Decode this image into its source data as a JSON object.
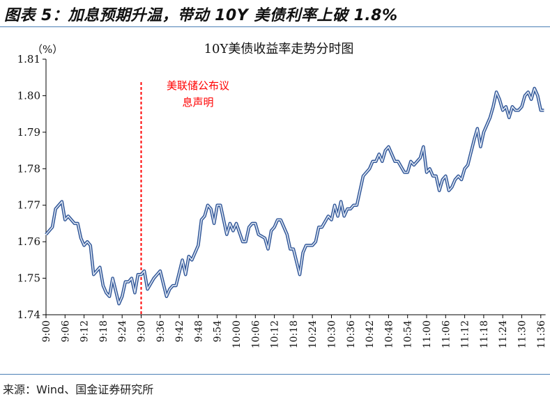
{
  "figure": {
    "title": "图表 5：加息预期升温，带动 10Y 美债利率上破 1.8%",
    "source": "来源：Wind、国金证券研究所"
  },
  "chart_data": {
    "type": "line",
    "title": "10Y美债收益率走势分时图",
    "ylabel": "（%）",
    "xlabel": "",
    "ylim": [
      1.74,
      1.81
    ],
    "yticks": [
      "1.74",
      "1.75",
      "1.76",
      "1.77",
      "1.78",
      "1.79",
      "1.80",
      "1.81"
    ],
    "xticks": [
      "9:00",
      "9:06",
      "9:12",
      "9:18",
      "9:24",
      "9:30",
      "9:36",
      "9:42",
      "9:48",
      "9:54",
      "10:00",
      "10:06",
      "10:12",
      "10:18",
      "10:24",
      "10:30",
      "10:36",
      "10:42",
      "10:48",
      "10:54",
      "11:00",
      "11:06",
      "11:12",
      "11:18",
      "11:24",
      "11:30",
      "11:36"
    ],
    "grid": false,
    "line_color": "#2f5597",
    "annotation": {
      "x": "9:30",
      "lines": [
        "美联储公布议",
        "息声明"
      ],
      "color": "#ff0000"
    },
    "series": [
      {
        "x": [
          "9:00",
          "9:02",
          "9:03",
          "9:05",
          "9:06",
          "9:07",
          "9:09",
          "9:10",
          "9:11",
          "9:12",
          "9:13",
          "9:14",
          "9:15",
          "9:17",
          "9:18",
          "9:19",
          "9:20",
          "9:21",
          "9:23",
          "9:24",
          "9:25",
          "9:26",
          "9:27",
          "9:28",
          "9:29",
          "9:30",
          "9:31",
          "9:32",
          "9:34",
          "9:35",
          "9:36",
          "9:38",
          "9:39",
          "9:40",
          "9:41",
          "9:43",
          "9:44",
          "9:45",
          "9:46",
          "9:48",
          "9:49",
          "9:50",
          "9:51",
          "9:52",
          "9:53",
          "9:54",
          "9:55",
          "9:57",
          "9:58",
          "9:59",
          "10:00",
          "10:02",
          "10:03",
          "10:04",
          "10:05",
          "10:06",
          "10:07",
          "10:09",
          "10:10",
          "10:11",
          "10:12",
          "10:13",
          "10:14",
          "10:16",
          "10:17",
          "10:18",
          "10:20",
          "10:21",
          "10:22",
          "10:24",
          "10:25",
          "10:26",
          "10:27",
          "10:29",
          "10:30",
          "10:31",
          "10:32",
          "10:33",
          "10:34",
          "10:35",
          "10:36",
          "10:37",
          "10:38",
          "10:40",
          "10:42",
          "10:43",
          "10:44",
          "10:45",
          "10:46",
          "10:47",
          "10:48",
          "10:50",
          "10:51",
          "10:53",
          "10:54",
          "10:55",
          "10:56",
          "10:58",
          "10:59",
          "11:00",
          "11:01",
          "11:02",
          "11:03",
          "11:04",
          "11:05",
          "11:06",
          "11:07",
          "11:08",
          "11:09",
          "11:10",
          "11:11",
          "11:12",
          "11:13",
          "11:15",
          "11:16",
          "11:17",
          "11:18",
          "11:20",
          "11:21",
          "11:22",
          "11:23",
          "11:24",
          "11:25",
          "11:26",
          "11:27",
          "11:28",
          "11:29",
          "11:30",
          "11:31",
          "11:32",
          "11:33",
          "11:34",
          "11:35",
          "11:36",
          "11:37"
        ],
        "y": [
          1.762,
          1.764,
          1.769,
          1.771,
          1.766,
          1.767,
          1.765,
          1.765,
          1.761,
          1.759,
          1.76,
          1.759,
          1.751,
          1.753,
          1.748,
          1.746,
          1.745,
          1.75,
          1.743,
          1.745,
          1.749,
          1.749,
          1.75,
          1.746,
          1.751,
          1.751,
          1.752,
          1.747,
          1.75,
          1.751,
          1.752,
          1.745,
          1.747,
          1.748,
          1.748,
          1.755,
          1.751,
          1.756,
          1.755,
          1.759,
          1.766,
          1.767,
          1.77,
          1.769,
          1.765,
          1.77,
          1.77,
          1.762,
          1.765,
          1.763,
          1.765,
          1.76,
          1.76,
          1.764,
          1.765,
          1.765,
          1.762,
          1.761,
          1.758,
          1.763,
          1.764,
          1.766,
          1.766,
          1.762,
          1.758,
          1.758,
          1.751,
          1.757,
          1.759,
          1.759,
          1.76,
          1.764,
          1.764,
          1.767,
          1.766,
          1.77,
          1.767,
          1.771,
          1.767,
          1.769,
          1.769,
          1.77,
          1.77,
          1.778,
          1.78,
          1.782,
          1.782,
          1.784,
          1.782,
          1.785,
          1.786,
          1.782,
          1.782,
          1.779,
          1.779,
          1.782,
          1.781,
          1.783,
          1.786,
          1.779,
          1.78,
          1.778,
          1.778,
          1.774,
          1.777,
          1.778,
          1.774,
          1.775,
          1.777,
          1.778,
          1.777,
          1.78,
          1.781,
          1.788,
          1.791,
          1.786,
          1.79,
          1.794,
          1.797,
          1.801,
          1.799,
          1.796,
          1.797,
          1.794,
          1.797,
          1.796,
          1.796,
          1.797,
          1.8,
          1.801,
          1.799,
          1.802,
          1.8,
          1.796,
          1.796
        ]
      }
    ]
  }
}
